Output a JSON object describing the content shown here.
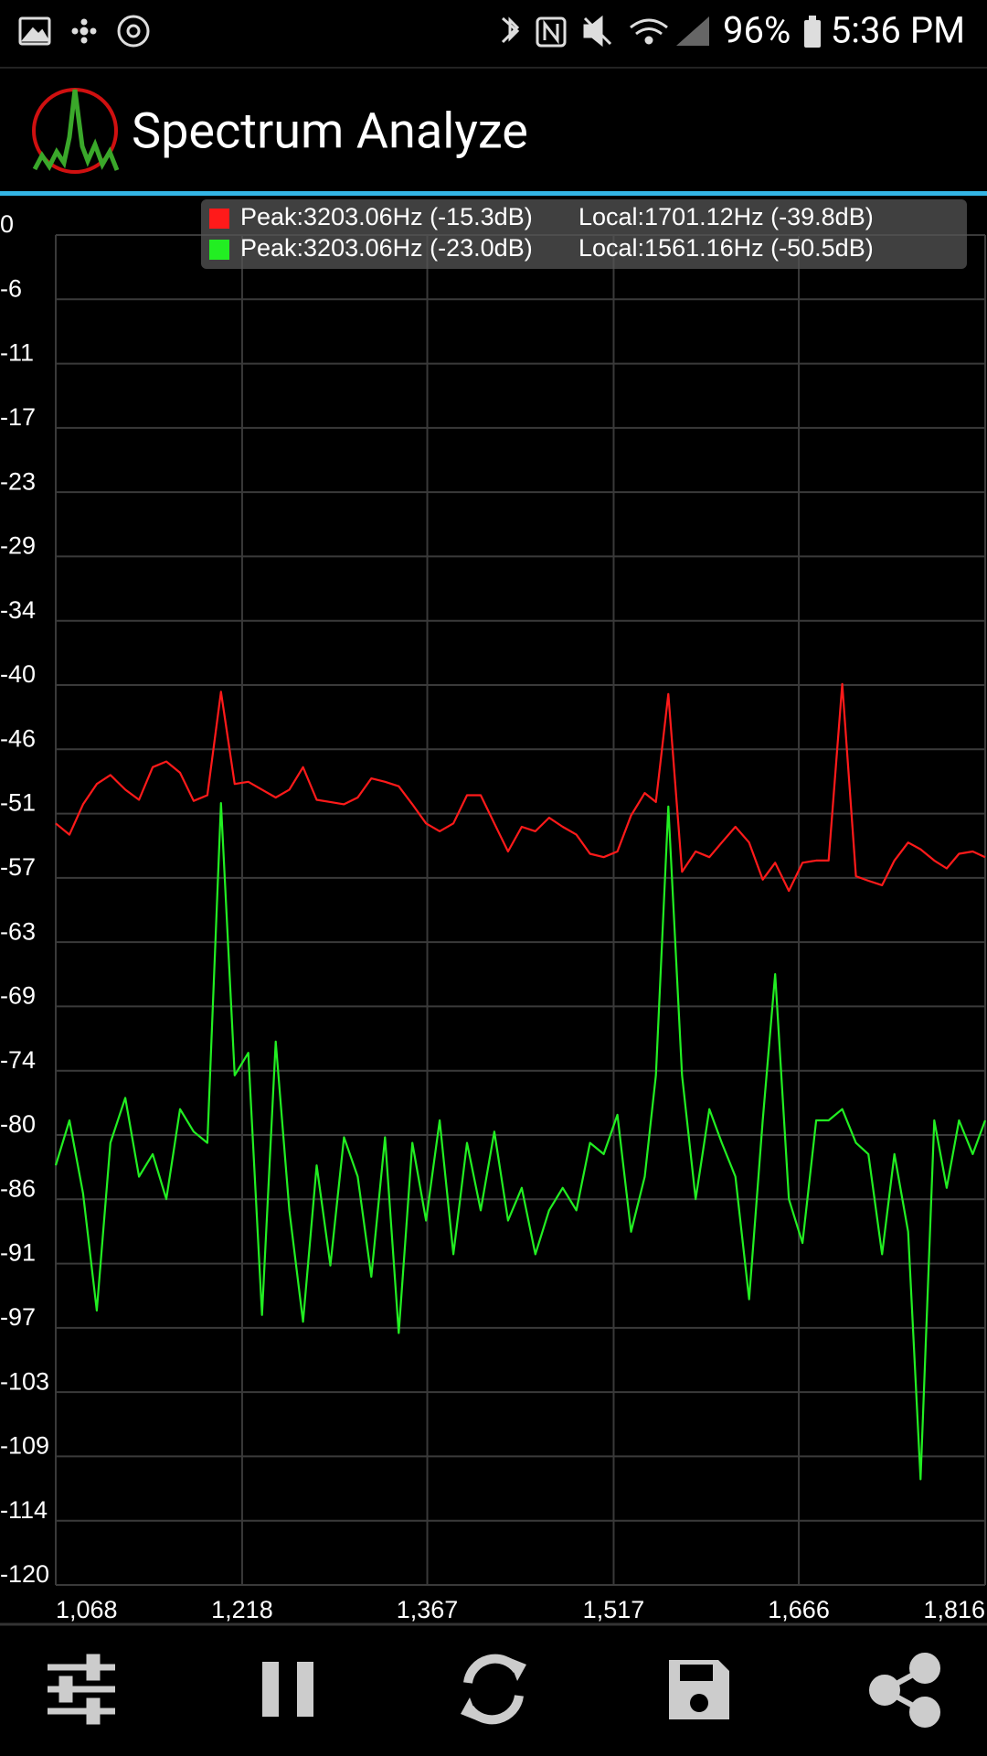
{
  "status_bar": {
    "battery": "96%",
    "time": "5:36 PM"
  },
  "app_bar": {
    "title": "Spectrum Analyze"
  },
  "chart_data": {
    "type": "line",
    "x": [
      1068,
      1079,
      1090,
      1101,
      1112,
      1124,
      1135,
      1146,
      1157,
      1168,
      1179,
      1190,
      1201,
      1212,
      1223,
      1234,
      1245,
      1256,
      1267,
      1278,
      1289,
      1300,
      1311,
      1322,
      1333,
      1344,
      1355,
      1366,
      1377,
      1388,
      1399,
      1410,
      1421,
      1432,
      1443,
      1454,
      1465,
      1476,
      1487,
      1498,
      1509,
      1520,
      1531,
      1542,
      1551,
      1561,
      1572,
      1583,
      1594,
      1604,
      1615,
      1626,
      1637,
      1647,
      1658,
      1669,
      1680,
      1690,
      1701,
      1712,
      1722,
      1733,
      1743,
      1754,
      1764,
      1775,
      1785,
      1795,
      1806,
      1816
    ],
    "series": [
      {
        "color": "#ff1a1a",
        "peak_label": "Peak:3203.06Hz (-15.3dB)",
        "local_label": "Local:1701.12Hz (-39.8dB)",
        "values": [
          -52.3,
          -53.3,
          -50.6,
          -48.8,
          -48.0,
          -49.3,
          -50.2,
          -47.3,
          -46.8,
          -47.8,
          -50.3,
          -49.8,
          -40.6,
          -48.8,
          -48.6,
          -49.3,
          -50.0,
          -49.3,
          -47.3,
          -50.2,
          -50.4,
          -50.6,
          -50.0,
          -48.3,
          -48.6,
          -49.0,
          -50.6,
          -52.3,
          -53.0,
          -52.3,
          -49.8,
          -49.8,
          -52.3,
          -54.8,
          -52.6,
          -53.0,
          -51.8,
          -52.6,
          -53.3,
          -55.0,
          -55.3,
          -54.8,
          -51.6,
          -49.6,
          -50.4,
          -40.8,
          -56.6,
          -54.8,
          -55.3,
          -54.0,
          -52.6,
          -54.0,
          -57.3,
          -55.8,
          -58.3,
          -55.8,
          -55.6,
          -55.6,
          -39.9,
          -57.0,
          -57.4,
          -57.8,
          -55.6,
          -54.0,
          -54.6,
          -55.6,
          -56.3,
          -55.0,
          -54.8,
          -55.3
        ]
      },
      {
        "color": "#22ee22",
        "peak_label": "Peak:3203.06Hz (-23.0dB)",
        "local_label": "Local:1561.16Hz (-50.5dB)",
        "values": [
          -82.7,
          -78.7,
          -85.2,
          -95.6,
          -80.7,
          -76.7,
          -83.7,
          -81.7,
          -85.7,
          -77.7,
          -79.7,
          -80.7,
          -50.5,
          -74.7,
          -72.7,
          -96.0,
          -71.7,
          -86.7,
          -96.6,
          -82.7,
          -91.6,
          -80.2,
          -83.7,
          -92.6,
          -80.2,
          -97.6,
          -80.7,
          -87.6,
          -78.7,
          -90.6,
          -80.7,
          -86.7,
          -79.7,
          -87.6,
          -84.7,
          -90.6,
          -86.7,
          -84.7,
          -86.7,
          -80.7,
          -81.7,
          -78.2,
          -88.6,
          -83.7,
          -74.7,
          -50.8,
          -74.7,
          -85.7,
          -77.7,
          -80.7,
          -83.7,
          -94.6,
          -78.7,
          -65.7,
          -85.7,
          -89.6,
          -78.7,
          -78.7,
          -77.7,
          -80.7,
          -81.7,
          -90.6,
          -81.7,
          -88.6,
          -110.6,
          -78.7,
          -84.7,
          -78.7,
          -81.7,
          -78.7
        ]
      }
    ],
    "xlim": [
      1068,
      1816
    ],
    "xticks": [
      {
        "value": 1068,
        "label": "1,068"
      },
      {
        "value": 1218,
        "label": "1,218"
      },
      {
        "value": 1367,
        "label": "1,367"
      },
      {
        "value": 1517,
        "label": "1,517"
      },
      {
        "value": 1666,
        "label": "1,666"
      },
      {
        "value": 1816,
        "label": "1,816"
      }
    ],
    "ylim": [
      -120,
      0
    ],
    "yticks": [
      0,
      {
        "value": -5.714,
        "label": "-6"
      },
      {
        "value": -11.429,
        "label": "-11"
      },
      {
        "value": -17.143,
        "label": "-17"
      },
      {
        "value": -22.857,
        "label": "-23"
      },
      {
        "value": -28.571,
        "label": "-29"
      },
      {
        "value": -34.286,
        "label": "-34"
      },
      -40,
      {
        "value": -45.714,
        "label": "-46"
      },
      {
        "value": -51.429,
        "label": "-51"
      },
      {
        "value": -57.143,
        "label": "-57"
      },
      {
        "value": -62.857,
        "label": "-63"
      },
      {
        "value": -68.571,
        "label": "-69"
      },
      {
        "value": -74.286,
        "label": "-74"
      },
      -80,
      {
        "value": -85.714,
        "label": "-86"
      },
      {
        "value": -91.429,
        "label": "-91"
      },
      {
        "value": -97.143,
        "label": "-97"
      },
      {
        "value": -102.857,
        "label": "-103"
      },
      {
        "value": -108.571,
        "label": "-109"
      },
      {
        "value": -114.286,
        "label": "-114"
      },
      -120
    ],
    "grid": true
  }
}
